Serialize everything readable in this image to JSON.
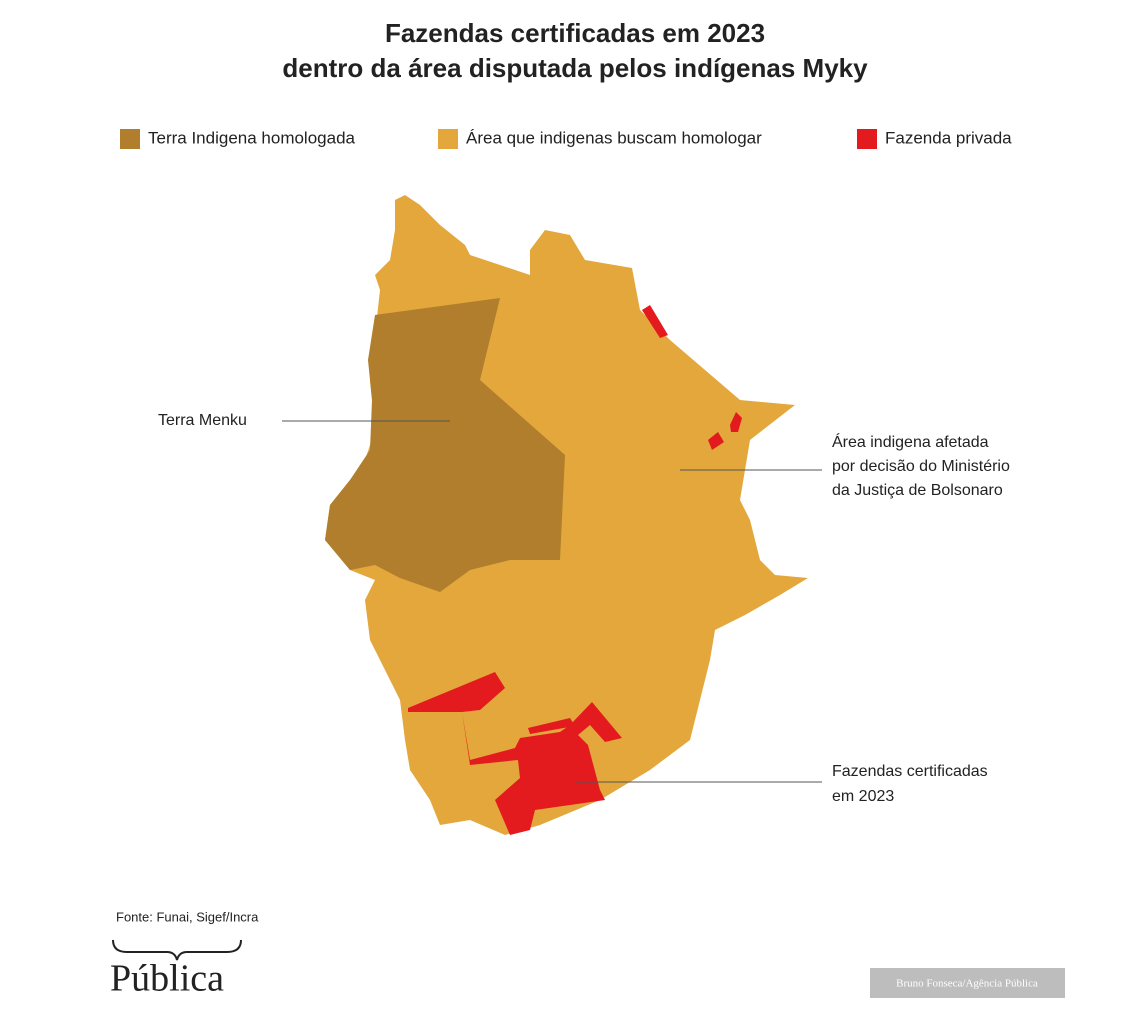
{
  "title": [
    "Fazendas certificadas em 2023",
    "dentro da área disputada pelos indígenas Myky"
  ],
  "legend": [
    {
      "label": "Terra Indigena homologada",
      "color": "#b07e2c"
    },
    {
      "label": "Área que indigenas buscam homologar",
      "color": "#e3a73c"
    },
    {
      "label": "Fazenda privada",
      "color": "#e31b1e"
    }
  ],
  "annotations": [
    [
      "Terra Menku"
    ],
    [
      "Área indigena afetada",
      "por decisão do Ministério",
      "da Justiça de Bolsonaro"
    ],
    [
      "Fazendas certificadas",
      "em 2023"
    ]
  ],
  "source": "Fonte: Funai, Sigef/Incra",
  "logo": "Pública",
  "credit": "Bruno Fonseca/Agência Pública"
}
